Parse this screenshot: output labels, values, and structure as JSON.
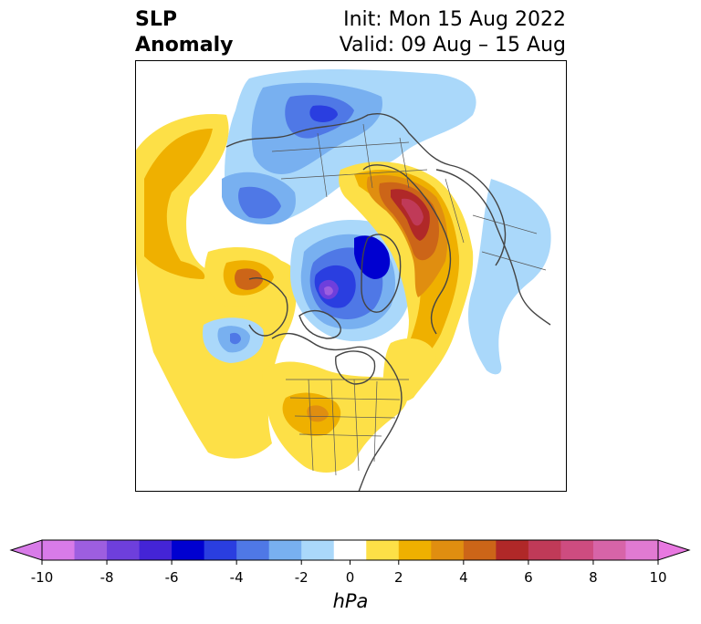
{
  "title": {
    "left_line1": "SLP",
    "left_line2": "Anomaly",
    "right_line1": "Init: Mon 15 Aug 2022",
    "right_line2": "Valid: 09 Aug – 15 Aug"
  },
  "colorbar": {
    "unit": "hPa",
    "tick_labels": [
      "-10",
      "-8",
      "-6",
      "-4",
      "-2",
      "0",
      "2",
      "4",
      "6",
      "8",
      "10"
    ],
    "levels": [
      -10,
      -9,
      -8,
      -7,
      -6,
      -5,
      -4,
      -3,
      -2,
      -1,
      1,
      2,
      3,
      4,
      5,
      6,
      7,
      8,
      9,
      10
    ],
    "colors": [
      "#d87be8",
      "#9d5ee0",
      "#6e3fdc",
      "#4424d6",
      "#0000d0",
      "#2a3ee0",
      "#4f78e6",
      "#78b0f0",
      "#aad8fa",
      "#ffffff",
      "#fde047",
      "#efb000",
      "#e08e10",
      "#cc6518",
      "#b02828",
      "#c03a58",
      "#ce4c80",
      "#d764a8",
      "#e17ad2"
    ],
    "extend_min_color": "#d87be8",
    "extend_max_color": "#e878e0"
  },
  "map": {
    "projection": "north-polar-stereographic",
    "region": "Northern Hemisphere"
  }
}
